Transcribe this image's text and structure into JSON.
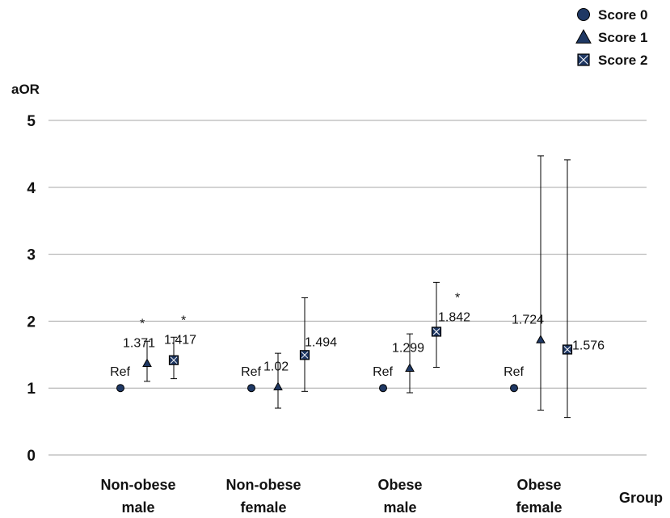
{
  "chart_data": {
    "type": "scatter",
    "ylabel": "aOR",
    "xlabel": "Group",
    "ylim": [
      0,
      5
    ],
    "yticks": [
      0,
      1,
      2,
      3,
      4,
      5
    ],
    "grid": true,
    "legend_position": "top-right",
    "categories": [
      [
        "Non-obese",
        "male"
      ],
      [
        "Non-obese",
        "female"
      ],
      [
        "Obese",
        "male"
      ],
      [
        "Obese",
        "female"
      ]
    ],
    "series": [
      {
        "name": "Score 0",
        "marker": "circle",
        "values": [
          1,
          1,
          1,
          1
        ],
        "labels": [
          "Ref",
          "Ref",
          "Ref",
          "Ref"
        ]
      },
      {
        "name": "Score 1",
        "marker": "triangle",
        "values": [
          1.371,
          1.02,
          1.299,
          1.724
        ],
        "labels": [
          "1.371",
          "1.02",
          "1.299",
          "1.724"
        ],
        "ci_low": [
          1.1,
          0.7,
          0.93,
          0.67
        ],
        "ci_high": [
          1.7,
          1.52,
          1.81,
          4.47
        ],
        "significant": [
          true,
          false,
          false,
          false
        ]
      },
      {
        "name": "Score 2",
        "marker": "square",
        "values": [
          1.417,
          1.494,
          1.842,
          1.576
        ],
        "labels": [
          "1.417",
          "1.494",
          "1.842",
          "1.576"
        ],
        "ci_low": [
          1.14,
          0.95,
          1.31,
          0.56
        ],
        "ci_high": [
          1.76,
          2.35,
          2.58,
          4.41
        ],
        "significant": [
          true,
          false,
          true,
          false
        ]
      }
    ],
    "significance_marker": "*",
    "colors": {
      "marker_fill": "#1f3864",
      "grid": "#a6a6a6",
      "text": "#111111"
    }
  }
}
